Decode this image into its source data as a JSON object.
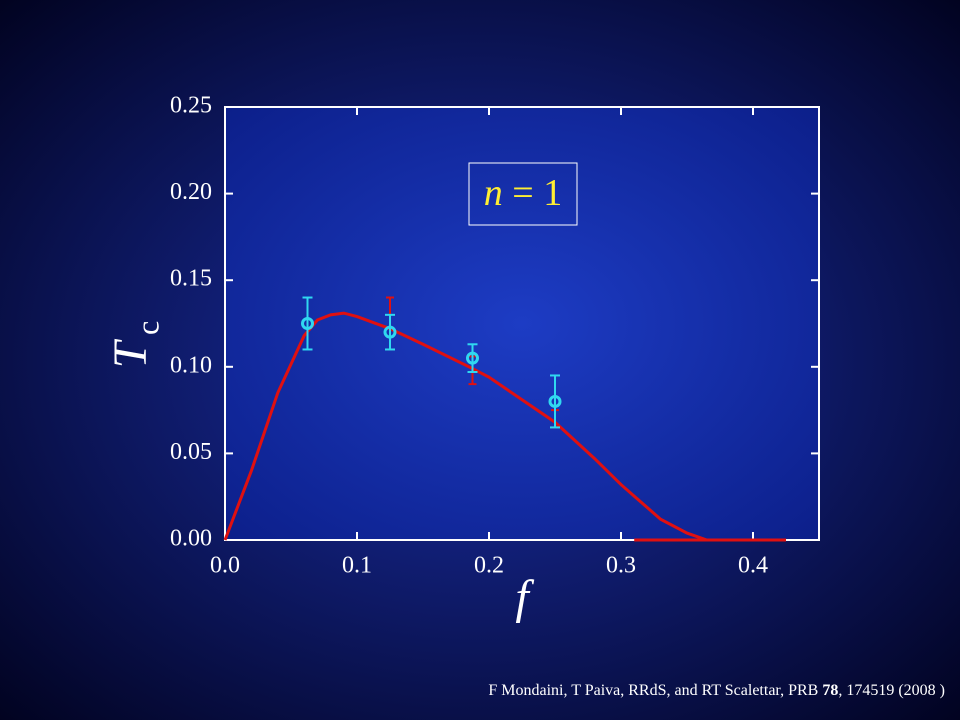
{
  "chart_data": {
    "type": "line",
    "xlabel": "f",
    "ylabel": "T",
    "ylabel_sub": "c",
    "annotation_var": "n",
    "annotation_text": " = 1",
    "xlim": [
      0,
      0.45
    ],
    "ylim": [
      0,
      0.25
    ],
    "xticks": [
      {
        "value": 0,
        "label": "0.0"
      },
      0.1,
      0.2,
      0.3,
      0.4
    ],
    "yticks": [
      {
        "value": 0,
        "label": "0.00"
      },
      0.05,
      {
        "value": 0.1,
        "label": "0.10"
      },
      0.15,
      {
        "value": 0.2,
        "label": "0.20"
      },
      0.25
    ],
    "curve": {
      "color": "#e01010",
      "x": [
        0,
        0.02,
        0.04,
        0.06,
        0.07,
        0.08,
        0.09,
        0.1,
        0.125,
        0.15,
        0.1875,
        0.2,
        0.25,
        0.28,
        0.3,
        0.33,
        0.35,
        0.365
      ],
      "values": [
        0,
        0.04,
        0.085,
        0.118,
        0.127,
        0.13,
        0.131,
        0.129,
        0.122,
        0.113,
        0.099,
        0.094,
        0.068,
        0.047,
        0.032,
        0.012,
        0.004,
        0
      ]
    },
    "baseline": {
      "color": "#e01010",
      "x": [
        0.31,
        0.425
      ],
      "values": [
        0,
        0
      ]
    },
    "red_bars": {
      "color": "#e01010",
      "x": [
        0.125,
        0.1875,
        0.25
      ],
      "values": [
        0.125,
        0.098,
        0.07
      ],
      "errors": [
        0.015,
        0.008,
        0.005
      ]
    },
    "points": {
      "color": "#30d8f0",
      "x": [
        0.0625,
        0.125,
        0.1875,
        0.25
      ],
      "values": [
        0.125,
        0.12,
        0.105,
        0.08
      ],
      "errors": [
        0.015,
        0.01,
        0.008,
        0.015
      ]
    },
    "footer": [
      "F Mondaini, T Paiva, RRdS, and RT Scalettar, PRB ",
      "78",
      ", 174519 (2008 )"
    ]
  }
}
